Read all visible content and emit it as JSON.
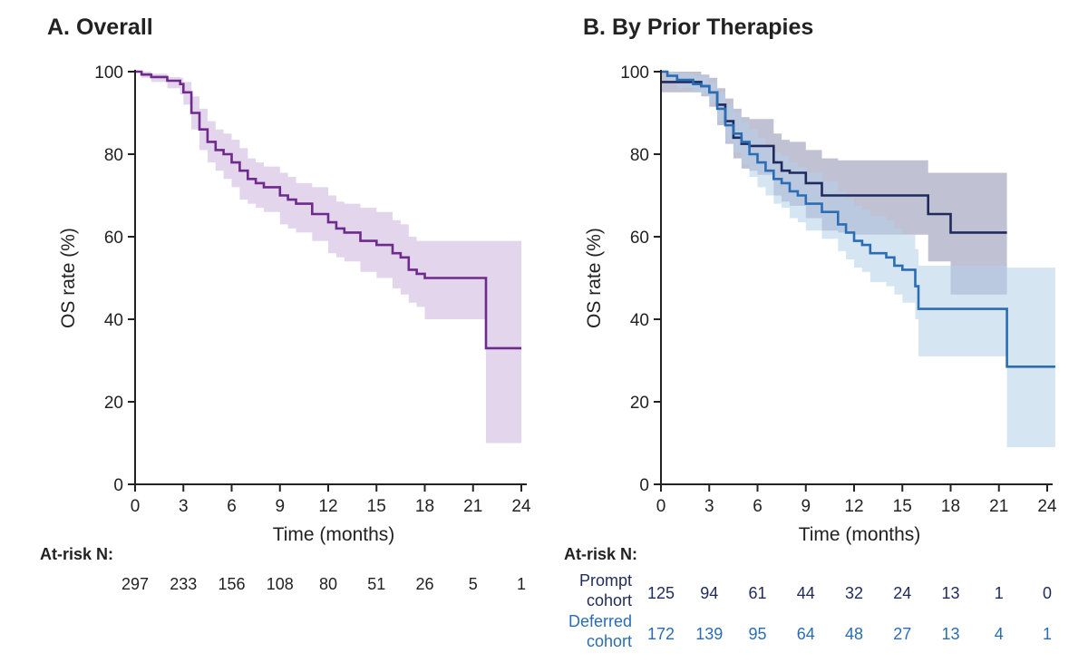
{
  "chart_data": [
    {
      "type": "line",
      "subtype": "kaplan-meier",
      "title": "A. Overall",
      "xlabel": "Time (months)",
      "ylabel": "OS rate (%)",
      "xlim": [
        0,
        24
      ],
      "ylim": [
        0,
        100
      ],
      "x_ticks": [
        0,
        3,
        6,
        9,
        12,
        15,
        18,
        21,
        24
      ],
      "y_ticks": [
        0,
        20,
        40,
        60,
        80,
        100
      ],
      "grid": false,
      "series": [
        {
          "color": "#6e2a8c",
          "band_color": "#cbb2dc",
          "x": [
            0,
            0.4,
            1,
            2,
            2.8,
            3,
            3.5,
            4,
            4.5,
            5,
            5.5,
            6,
            6.5,
            7,
            7.5,
            8,
            9,
            9.5,
            10,
            11,
            12,
            12.5,
            13,
            14,
            15,
            16,
            16.5,
            17,
            17.5,
            18,
            21.8,
            24
          ],
          "y": [
            100,
            99.3,
            98.7,
            97.8,
            97,
            95,
            90,
            86,
            83,
            81,
            80,
            78,
            76,
            74,
            73,
            72,
            70,
            69,
            68,
            65.5,
            63.5,
            62,
            61,
            59,
            58,
            56,
            55,
            52,
            51,
            50,
            33,
            33
          ],
          "lower": [
            100,
            98.5,
            97.5,
            96,
            94.5,
            92,
            86,
            81,
            78,
            76,
            74,
            72,
            69,
            68,
            67,
            66,
            63,
            62,
            61,
            59,
            56,
            55,
            54,
            51.5,
            50,
            47.5,
            46,
            44,
            43,
            40,
            10,
            10
          ],
          "upper": [
            100,
            100,
            99.5,
            98.7,
            98.5,
            97.5,
            94,
            91,
            88,
            86,
            85,
            83.5,
            81.5,
            79,
            78,
            77,
            75.5,
            74.5,
            73,
            72,
            70,
            68.5,
            68,
            67,
            66,
            64,
            63,
            60,
            59,
            59,
            59,
            59
          ]
        }
      ],
      "at_risk": {
        "header": "At-risk N:",
        "times": [
          0,
          3,
          6,
          9,
          12,
          15,
          18,
          21,
          24
        ],
        "rows": [
          {
            "label": "",
            "color": "#222222",
            "values": [
              "297",
              "233",
              "156",
              "108",
              "80",
              "51",
              "26",
              "5",
              "1"
            ]
          }
        ]
      }
    },
    {
      "type": "line",
      "subtype": "kaplan-meier",
      "title": "B. By Prior Therapies",
      "xlabel": "Time (months)",
      "ylabel": "OS rate (%)",
      "xlim": [
        0,
        24
      ],
      "ylim": [
        0,
        100
      ],
      "x_ticks": [
        0,
        3,
        6,
        9,
        12,
        15,
        18,
        21,
        24
      ],
      "y_ticks": [
        0,
        20,
        40,
        60,
        80,
        100
      ],
      "grid": false,
      "series": [
        {
          "color": "#1f2a5e",
          "band_color": "#8c8fb0",
          "x": [
            0,
            0.3,
            2.5,
            3,
            3.5,
            4,
            4.5,
            5,
            5.5,
            6,
            7,
            7.5,
            8,
            9,
            10,
            11,
            12,
            13,
            15,
            16.6,
            17.2,
            18,
            21.5
          ],
          "y": [
            97.5,
            97.5,
            96.5,
            95,
            92,
            88,
            84,
            82.5,
            82,
            82,
            78,
            76,
            75.5,
            73,
            70,
            70,
            70,
            70,
            70,
            65.5,
            65.5,
            61,
            61
          ],
          "lower": [
            95,
            95,
            94,
            91.5,
            87,
            82.5,
            79,
            76.5,
            76,
            75,
            70,
            68.5,
            67.5,
            64.5,
            61.5,
            61,
            60.5,
            60.5,
            60.5,
            54,
            54,
            46,
            46
          ],
          "upper": [
            100,
            100,
            99.3,
            98.5,
            96,
            93.5,
            91,
            89,
            88.5,
            88.5,
            85,
            83.5,
            83,
            81,
            79,
            78.5,
            78.5,
            78.5,
            78.5,
            75.5,
            75.5,
            75.5,
            75.5
          ]
        },
        {
          "color": "#2a6db5",
          "band_color": "#b4cfe8",
          "x": [
            0,
            0.4,
            1,
            2,
            2.5,
            3,
            3.5,
            4,
            4.5,
            5,
            5.5,
            6,
            6.5,
            7,
            7.5,
            8,
            8.5,
            9,
            10,
            11,
            11.5,
            12,
            12.5,
            13,
            14,
            14.5,
            15,
            15.8,
            16,
            21.5,
            24.5
          ],
          "y": [
            100,
            99,
            98,
            97,
            96.5,
            95,
            91,
            87,
            85,
            83,
            80,
            78,
            76,
            74,
            73,
            71,
            70,
            68,
            66,
            63,
            61,
            59,
            58,
            56,
            55,
            53,
            52,
            48,
            42.5,
            28.5,
            28.5
          ],
          "lower": [
            100,
            97.5,
            96,
            95,
            94.5,
            92.5,
            88,
            83,
            80.5,
            77.5,
            74.5,
            72,
            70,
            68,
            67,
            64.5,
            63.5,
            61.5,
            59.5,
            56.5,
            54.5,
            52.5,
            51.5,
            49,
            48,
            46,
            44,
            40,
            31,
            9,
            9
          ],
          "upper": [
            100,
            100,
            99.5,
            99,
            98.7,
            97.5,
            95,
            92,
            90,
            88,
            86,
            84,
            82,
            80.5,
            79.5,
            78,
            77,
            75.5,
            73.5,
            71,
            69.5,
            67.5,
            66.5,
            65,
            64,
            62,
            60.5,
            57,
            53,
            52.5,
            52.5
          ]
        }
      ],
      "at_risk": {
        "header": "At-risk N:",
        "times": [
          0,
          3,
          6,
          9,
          12,
          15,
          18,
          21,
          24
        ],
        "rows": [
          {
            "label": "Prompt cohort",
            "color": "#1f2a5e",
            "values": [
              "125",
              "94",
              "61",
              "44",
              "32",
              "24",
              "13",
              "1",
              "0"
            ]
          },
          {
            "label": "Deferred cohort",
            "color": "#2a6db5",
            "values": [
              "172",
              "139",
              "95",
              "64",
              "48",
              "27",
              "13",
              "4",
              "1"
            ]
          }
        ]
      }
    }
  ]
}
